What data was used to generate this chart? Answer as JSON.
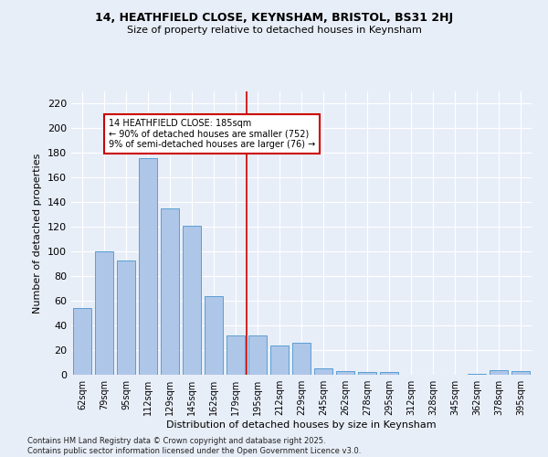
{
  "title1": "14, HEATHFIELD CLOSE, KEYNSHAM, BRISTOL, BS31 2HJ",
  "title2": "Size of property relative to detached houses in Keynsham",
  "xlabel": "Distribution of detached houses by size in Keynsham",
  "ylabel": "Number of detached properties",
  "categories": [
    "62sqm",
    "79sqm",
    "95sqm",
    "112sqm",
    "129sqm",
    "145sqm",
    "162sqm",
    "179sqm",
    "195sqm",
    "212sqm",
    "229sqm",
    "245sqm",
    "262sqm",
    "278sqm",
    "295sqm",
    "312sqm",
    "328sqm",
    "345sqm",
    "362sqm",
    "378sqm",
    "395sqm"
  ],
  "values": [
    54,
    100,
    93,
    176,
    135,
    121,
    64,
    32,
    32,
    24,
    26,
    5,
    3,
    2,
    2,
    0,
    0,
    0,
    1,
    4,
    3
  ],
  "bar_color": "#aec6e8",
  "bar_edge_color": "#5a9fd4",
  "background_color": "#e8eef8",
  "grid_color": "#ffffff",
  "annotation_text": "14 HEATHFIELD CLOSE: 185sqm\n← 90% of detached houses are smaller (752)\n9% of semi-detached houses are larger (76) →",
  "annotation_box_color": "#ffffff",
  "annotation_box_edge_color": "#cc0000",
  "footnote": "Contains HM Land Registry data © Crown copyright and database right 2025.\nContains public sector information licensed under the Open Government Licence v3.0.",
  "ylim": [
    0,
    230
  ],
  "yticks": [
    0,
    20,
    40,
    60,
    80,
    100,
    120,
    140,
    160,
    180,
    200,
    220
  ]
}
